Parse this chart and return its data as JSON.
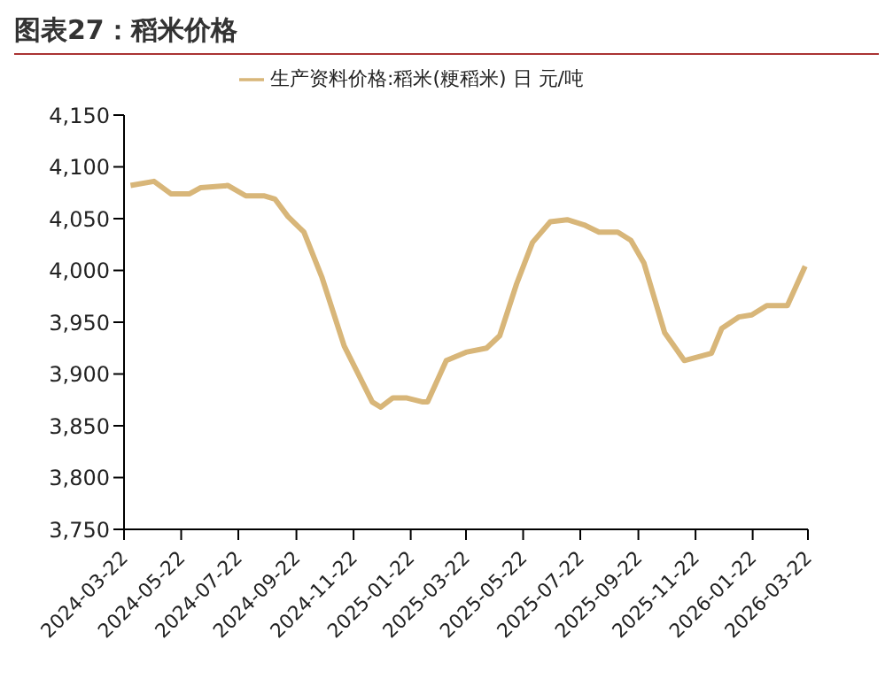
{
  "chart_data": {
    "type": "line",
    "title": "图表27：稻米价格",
    "legend": "top",
    "x": [
      "2024-03-29",
      "2024-04-23",
      "2024-05-11",
      "2024-05-31",
      "2024-06-12",
      "2024-07-11",
      "2024-07-30",
      "2024-08-19",
      "2024-08-30",
      "2024-09-13",
      "2024-09-30",
      "2024-10-19",
      "2024-11-12",
      "2024-12-12",
      "2024-12-21",
      "2025-01-03",
      "2025-01-17",
      "2025-02-04",
      "2025-02-09",
      "2025-03-01",
      "2025-03-22",
      "2025-04-13",
      "2025-04-27",
      "2025-05-15",
      "2025-06-01",
      "2025-06-20",
      "2025-07-08",
      "2025-07-26",
      "2025-08-11",
      "2025-08-31",
      "2025-09-14",
      "2025-09-28",
      "2025-10-20",
      "2025-11-10",
      "2025-12-09",
      "2025-12-20",
      "2026-01-07",
      "2026-01-21",
      "2026-02-06",
      "2026-02-28",
      "2026-03-19"
    ],
    "series": [
      {
        "name": "生产资料价格:稻米(粳稻米) 日 元/吨",
        "color": "#d8b679",
        "values": [
          4082,
          4086,
          4074,
          4074,
          4080,
          4082,
          4072,
          4072,
          4069,
          4052,
          4037,
          3994,
          3927,
          3873,
          3868,
          3877,
          3877,
          3873,
          3873,
          3913,
          3921,
          3925,
          3937,
          3987,
          4027,
          4047,
          4049,
          4044,
          4037,
          4037,
          4029,
          4007,
          3940,
          3913,
          3920,
          3944,
          3955,
          3957,
          3966,
          3966,
          4004
        ]
      }
    ],
    "xlim": [
      "2024-03-22",
      "2026-03-22"
    ],
    "xticks": [
      "2024-03-22",
      "2024-05-22",
      "2024-07-22",
      "2024-09-22",
      "2024-11-22",
      "2025-01-22",
      "2025-03-22",
      "2025-05-22",
      "2025-07-22",
      "2025-09-22",
      "2025-11-22",
      "2026-01-22",
      "2026-03-22"
    ],
    "ylim": [
      3750,
      4150
    ],
    "yticks": [
      {
        "value": 3750,
        "label": "3,750"
      },
      {
        "value": 3800,
        "label": "3,800"
      },
      {
        "value": 3850,
        "label": "3,850"
      },
      {
        "value": 3900,
        "label": "3,900"
      },
      {
        "value": 3950,
        "label": "3,950"
      },
      {
        "value": 4000,
        "label": "4,000"
      },
      {
        "value": 4050,
        "label": "4,050"
      },
      {
        "value": 4100,
        "label": "4,100"
      },
      {
        "value": 4150,
        "label": "4,150"
      }
    ],
    "grid": false,
    "marker": "none",
    "line_style": "solid"
  }
}
